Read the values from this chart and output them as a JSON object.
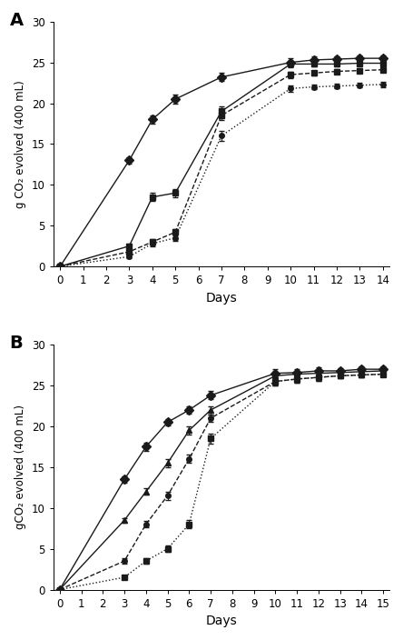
{
  "panel_A": {
    "xlabel": "Days",
    "ylabel": "g CO₂ evolved (400 mL)",
    "xlim": [
      -0.3,
      14.3
    ],
    "ylim": [
      0,
      30
    ],
    "xticks": [
      0,
      1,
      2,
      3,
      4,
      5,
      6,
      7,
      8,
      9,
      10,
      11,
      12,
      13,
      14
    ],
    "yticks": [
      0,
      5,
      10,
      15,
      20,
      25,
      30
    ],
    "label": "A",
    "series": [
      {
        "x": [
          0,
          3,
          4,
          5,
          7,
          10,
          11,
          12,
          13,
          14
        ],
        "y": [
          0,
          13.0,
          18.0,
          20.5,
          23.2,
          25.0,
          25.3,
          25.4,
          25.5,
          25.5
        ],
        "yerr": [
          0,
          0.4,
          0.5,
          0.6,
          0.5,
          0.5,
          0.4,
          0.3,
          0.3,
          0.3
        ],
        "marker": "D",
        "linestyle": "-",
        "ms": 5
      },
      {
        "x": [
          0,
          3,
          4,
          5,
          7,
          10,
          11,
          12,
          13,
          14
        ],
        "y": [
          0,
          2.5,
          8.5,
          9.0,
          19.0,
          24.8,
          24.8,
          24.8,
          24.9,
          24.9
        ],
        "yerr": [
          0,
          0.3,
          0.5,
          0.5,
          0.6,
          0.4,
          0.3,
          0.3,
          0.3,
          0.3
        ],
        "marker": "s",
        "linestyle": "-",
        "ms": 5
      },
      {
        "x": [
          0,
          3,
          4,
          5,
          7,
          10,
          11,
          12,
          13,
          14
        ],
        "y": [
          0,
          1.2,
          2.8,
          3.5,
          16.0,
          21.8,
          22.0,
          22.1,
          22.2,
          22.3
        ],
        "yerr": [
          0,
          0.2,
          0.3,
          0.4,
          0.6,
          0.4,
          0.3,
          0.3,
          0.3,
          0.3
        ],
        "marker": "o",
        "linestyle": ":",
        "ms": 4
      },
      {
        "x": [
          0,
          3,
          4,
          5,
          7,
          10,
          11,
          12,
          13,
          14
        ],
        "y": [
          0,
          1.8,
          3.0,
          4.2,
          18.5,
          23.5,
          23.7,
          23.9,
          24.0,
          24.1
        ],
        "yerr": [
          0,
          0.2,
          0.3,
          0.4,
          0.6,
          0.4,
          0.3,
          0.3,
          0.3,
          0.3
        ],
        "marker": "s",
        "linestyle": "--",
        "ms": 5
      }
    ]
  },
  "panel_B": {
    "xlabel": "Days",
    "ylabel": "gCO₂ evolved (400 mL)",
    "xlim": [
      -0.3,
      15.3
    ],
    "ylim": [
      0,
      30
    ],
    "xticks": [
      0,
      1,
      2,
      3,
      4,
      5,
      6,
      7,
      8,
      9,
      10,
      11,
      12,
      13,
      14,
      15
    ],
    "yticks": [
      0,
      5,
      10,
      15,
      20,
      25,
      30
    ],
    "label": "B",
    "series": [
      {
        "x": [
          0,
          3,
          4,
          5,
          6,
          7,
          10,
          11,
          12,
          13,
          14,
          15
        ],
        "y": [
          0,
          13.5,
          17.5,
          20.5,
          22.0,
          23.8,
          26.5,
          26.6,
          26.8,
          26.8,
          27.0,
          27.0
        ],
        "yerr": [
          0,
          0.4,
          0.5,
          0.4,
          0.4,
          0.5,
          0.5,
          0.4,
          0.4,
          0.3,
          0.3,
          0.3
        ],
        "marker": "D",
        "linestyle": "-",
        "ms": 5
      },
      {
        "x": [
          0,
          3,
          4,
          5,
          6,
          7,
          10,
          11,
          12,
          13,
          14,
          15
        ],
        "y": [
          0,
          8.5,
          12.0,
          15.5,
          19.5,
          22.0,
          26.2,
          26.4,
          26.5,
          26.6,
          26.7,
          26.8
        ],
        "yerr": [
          0,
          0.3,
          0.4,
          0.5,
          0.5,
          0.5,
          0.5,
          0.4,
          0.4,
          0.3,
          0.3,
          0.3
        ],
        "marker": "^",
        "linestyle": "-",
        "ms": 5
      },
      {
        "x": [
          0,
          3,
          4,
          5,
          6,
          7,
          10,
          11,
          12,
          13,
          14,
          15
        ],
        "y": [
          0,
          3.5,
          8.0,
          11.5,
          16.0,
          21.0,
          25.5,
          25.8,
          26.0,
          26.2,
          26.3,
          26.4
        ],
        "yerr": [
          0,
          0.3,
          0.4,
          0.5,
          0.5,
          0.5,
          0.5,
          0.4,
          0.4,
          0.3,
          0.3,
          0.3
        ],
        "marker": "o",
        "linestyle": "--",
        "ms": 4
      },
      {
        "x": [
          0,
          3,
          4,
          5,
          6,
          7,
          10,
          11,
          12,
          13,
          14,
          15
        ],
        "y": [
          0,
          1.5,
          3.5,
          5.0,
          8.0,
          18.5,
          25.5,
          25.8,
          26.0,
          26.2,
          26.3,
          26.4
        ],
        "yerr": [
          0,
          0.2,
          0.3,
          0.4,
          0.5,
          0.6,
          0.5,
          0.4,
          0.4,
          0.3,
          0.3,
          0.3
        ],
        "marker": "s",
        "linestyle": ":",
        "ms": 5
      }
    ]
  },
  "color": "#1a1a1a",
  "linewidth": 1.0,
  "capsize": 2,
  "elinewidth": 0.7,
  "figsize": [
    4.44,
    7.04
  ],
  "dpi": 100
}
